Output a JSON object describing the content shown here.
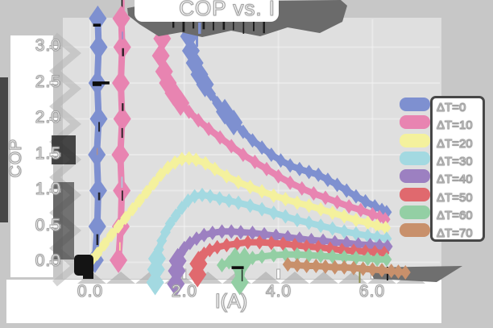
{
  "title": "COP vs. I",
  "axes": {
    "x_label": "I(A)",
    "y_label": "COP",
    "x_ticks": [
      "0.0",
      "2.0",
      "4.0",
      "6.0"
    ],
    "y_ticks": [
      "3.0",
      "2.5",
      "2.0",
      "1.5",
      "1.0",
      "0.5",
      "0.0"
    ]
  },
  "legend": {
    "items": [
      {
        "label": "ΔT=0",
        "color": "#7e90d0"
      },
      {
        "label": "ΔT=10",
        "color": "#e884b1"
      },
      {
        "label": "ΔT=20",
        "color": "#f4f19d"
      },
      {
        "label": "ΔT=30",
        "color": "#a3d9e1"
      },
      {
        "label": "ΔT=40",
        "color": "#9c80c1"
      },
      {
        "label": "ΔT=50",
        "color": "#e0696e"
      },
      {
        "label": "ΔT=60",
        "color": "#93cfa4"
      },
      {
        "label": "ΔT=70",
        "color": "#c8906b"
      }
    ]
  },
  "chart_data": {
    "type": "line",
    "title": "COP vs. I",
    "xlabel": "I(A)",
    "ylabel": "COP",
    "xlim": [
      0,
      6.8
    ],
    "ylim": [
      -0.3,
      3.4
    ],
    "x_tick_values": [
      0,
      2,
      4,
      6
    ],
    "y_tick_values": [
      0,
      0.5,
      1.0,
      1.5,
      2.0,
      2.5,
      3.0
    ],
    "grid": true,
    "legend_position": "right",
    "series": [
      {
        "name": "ΔT=0",
        "color": "#7e90d0",
        "segments": [
          [
            [
              0.1,
              0.03
            ],
            [
              0.15,
              0.5
            ],
            [
              0.17,
              1.0
            ],
            [
              0.14,
              1.5
            ],
            [
              0.18,
              2.0
            ],
            [
              0.15,
              2.5
            ],
            [
              0.18,
              3.0
            ],
            [
              0.16,
              3.4
            ]
          ],
          [
            [
              2.07,
              3.4
            ],
            [
              2.1,
              3.15
            ],
            [
              2.14,
              2.95
            ],
            [
              2.22,
              2.78
            ],
            [
              2.32,
              2.62
            ],
            [
              2.44,
              2.48
            ],
            [
              2.56,
              2.35
            ],
            [
              2.7,
              2.22
            ],
            [
              2.86,
              2.1
            ],
            [
              3.05,
              1.95
            ],
            [
              3.25,
              1.82
            ],
            [
              3.45,
              1.7
            ],
            [
              3.65,
              1.6
            ],
            [
              3.85,
              1.5
            ],
            [
              4.05,
              1.42
            ],
            [
              4.25,
              1.35
            ],
            [
              4.45,
              1.3
            ],
            [
              4.65,
              1.26
            ],
            [
              4.85,
              1.22
            ],
            [
              5.05,
              1.15
            ],
            [
              5.25,
              1.08
            ],
            [
              5.45,
              1.0
            ],
            [
              5.65,
              0.92
            ],
            [
              5.85,
              0.85
            ],
            [
              6.05,
              0.78
            ],
            [
              6.2,
              0.73
            ],
            [
              6.3,
              0.7
            ]
          ]
        ]
      },
      {
        "name": "ΔT=10",
        "color": "#e884b1",
        "segments": [
          [
            [
              0.6,
              0.03
            ],
            [
              0.65,
              0.5
            ],
            [
              0.67,
              1.0
            ],
            [
              0.64,
              1.5
            ],
            [
              0.68,
              2.0
            ],
            [
              0.65,
              2.5
            ],
            [
              0.68,
              3.0
            ],
            [
              0.66,
              3.4
            ]
          ],
          [
            [
              1.51,
              3.4
            ],
            [
              1.53,
              3.12
            ],
            [
              1.5,
              2.88
            ],
            [
              1.57,
              2.66
            ],
            [
              1.65,
              2.5
            ],
            [
              1.77,
              2.36
            ],
            [
              1.92,
              2.22
            ],
            [
              2.1,
              2.1
            ],
            [
              2.3,
              1.98
            ],
            [
              2.52,
              1.86
            ],
            [
              2.76,
              1.74
            ],
            [
              3.0,
              1.62
            ],
            [
              3.25,
              1.5
            ],
            [
              3.5,
              1.4
            ],
            [
              3.75,
              1.3
            ],
            [
              4.0,
              1.2
            ],
            [
              4.25,
              1.11
            ],
            [
              4.5,
              1.03
            ],
            [
              4.75,
              0.96
            ],
            [
              5.0,
              0.9
            ],
            [
              5.25,
              0.84
            ],
            [
              5.5,
              0.78
            ],
            [
              5.75,
              0.73
            ],
            [
              6.0,
              0.67
            ],
            [
              6.15,
              0.63
            ],
            [
              6.27,
              0.6
            ]
          ]
        ]
      },
      {
        "name": "ΔT=20",
        "color": "#f4f19d",
        "segments": [
          [
            [
              0.03,
              0.03
            ],
            [
              0.15,
              0.12
            ],
            [
              0.3,
              0.25
            ],
            [
              0.45,
              0.38
            ],
            [
              0.6,
              0.5
            ],
            [
              0.75,
              0.62
            ],
            [
              0.9,
              0.74
            ],
            [
              1.05,
              0.86
            ],
            [
              1.2,
              0.98
            ],
            [
              1.35,
              1.1
            ],
            [
              1.5,
              1.22
            ],
            [
              1.65,
              1.32
            ],
            [
              1.8,
              1.39
            ],
            [
              1.95,
              1.44
            ],
            [
              2.1,
              1.45
            ],
            [
              2.25,
              1.43
            ],
            [
              2.45,
              1.38
            ],
            [
              2.65,
              1.3
            ],
            [
              2.9,
              1.2
            ],
            [
              3.15,
              1.12
            ],
            [
              3.4,
              1.05
            ],
            [
              3.65,
              0.99
            ],
            [
              3.9,
              0.93
            ],
            [
              4.15,
              0.88
            ],
            [
              4.4,
              0.83
            ],
            [
              4.65,
              0.79
            ],
            [
              4.9,
              0.74
            ],
            [
              5.15,
              0.69
            ],
            [
              5.4,
              0.64
            ],
            [
              5.65,
              0.59
            ],
            [
              5.9,
              0.55
            ],
            [
              6.1,
              0.51
            ],
            [
              6.28,
              0.48
            ]
          ]
        ]
      },
      {
        "name": "ΔT=30",
        "color": "#a3d9e1",
        "segments": [
          [
            [
              1.38,
              -0.28
            ],
            [
              1.4,
              -0.1
            ],
            [
              1.42,
              0.05
            ],
            [
              1.46,
              0.18
            ],
            [
              1.52,
              0.3
            ],
            [
              1.6,
              0.42
            ],
            [
              1.7,
              0.54
            ],
            [
              1.82,
              0.65
            ],
            [
              1.95,
              0.76
            ],
            [
              2.08,
              0.86
            ],
            [
              2.22,
              0.92
            ],
            [
              2.38,
              0.94
            ],
            [
              2.55,
              0.92
            ],
            [
              2.75,
              0.89
            ],
            [
              2.95,
              0.86
            ],
            [
              3.15,
              0.83
            ],
            [
              3.4,
              0.79
            ],
            [
              3.65,
              0.74
            ],
            [
              3.9,
              0.69
            ],
            [
              4.15,
              0.64
            ],
            [
              4.4,
              0.59
            ],
            [
              4.65,
              0.55
            ],
            [
              4.9,
              0.51
            ],
            [
              5.15,
              0.47
            ],
            [
              5.4,
              0.43
            ],
            [
              5.65,
              0.4
            ],
            [
              5.9,
              0.37
            ],
            [
              6.1,
              0.35
            ],
            [
              6.3,
              0.33
            ]
          ]
        ]
      },
      {
        "name": "ΔT=40",
        "color": "#9c80c1",
        "segments": [
          [
            [
              1.82,
              -0.3
            ],
            [
              1.84,
              -0.12
            ],
            [
              1.86,
              0.02
            ],
            [
              1.92,
              0.12
            ],
            [
              2.0,
              0.2
            ],
            [
              2.12,
              0.27
            ],
            [
              2.26,
              0.33
            ],
            [
              2.42,
              0.38
            ],
            [
              2.6,
              0.41
            ],
            [
              2.8,
              0.43
            ],
            [
              3.0,
              0.43
            ],
            [
              3.2,
              0.42
            ],
            [
              3.45,
              0.41
            ],
            [
              3.7,
              0.39
            ],
            [
              3.95,
              0.37
            ],
            [
              4.2,
              0.35
            ],
            [
              4.45,
              0.33
            ],
            [
              4.7,
              0.31
            ],
            [
              4.95,
              0.3
            ],
            [
              5.2,
              0.28
            ],
            [
              5.45,
              0.27
            ],
            [
              5.7,
              0.25
            ],
            [
              5.95,
              0.24
            ],
            [
              6.15,
              0.23
            ],
            [
              6.32,
              0.22
            ]
          ]
        ]
      },
      {
        "name": "ΔT=50",
        "color": "#e0696e",
        "segments": [
          [
            [
              2.28,
              -0.17
            ],
            [
              2.3,
              -0.02
            ],
            [
              2.34,
              0.06
            ],
            [
              2.42,
              0.12
            ],
            [
              2.54,
              0.17
            ],
            [
              2.7,
              0.21
            ],
            [
              2.9,
              0.24
            ],
            [
              3.12,
              0.26
            ],
            [
              3.35,
              0.28
            ],
            [
              3.6,
              0.28
            ],
            [
              3.85,
              0.27
            ],
            [
              4.1,
              0.26
            ],
            [
              4.35,
              0.24
            ],
            [
              4.6,
              0.22
            ],
            [
              4.85,
              0.21
            ],
            [
              5.1,
              0.19
            ],
            [
              5.35,
              0.17
            ],
            [
              5.6,
              0.16
            ],
            [
              5.85,
              0.15
            ],
            [
              6.05,
              0.14
            ],
            [
              6.25,
              0.13
            ]
          ]
        ]
      },
      {
        "name": "ΔT=60",
        "color": "#93cfa4",
        "segments": [
          [
            [
              2.8,
              -0.04
            ],
            [
              2.95,
              0.0
            ],
            [
              3.08,
              0.03
            ],
            [
              3.18,
              -0.28
            ],
            [
              3.28,
              0.03
            ],
            [
              3.45,
              0.06
            ],
            [
              3.65,
              0.08
            ],
            [
              3.9,
              0.1
            ],
            [
              4.15,
              0.11
            ],
            [
              4.4,
              0.11
            ],
            [
              4.65,
              0.1
            ],
            [
              4.9,
              0.09
            ],
            [
              5.15,
              0.08
            ],
            [
              5.4,
              0.07
            ],
            [
              5.65,
              0.06
            ],
            [
              5.9,
              0.05
            ],
            [
              6.1,
              0.04
            ],
            [
              6.3,
              0.04
            ]
          ]
        ]
      },
      {
        "name": "ΔT=70",
        "color": "#c8906b",
        "segments": [
          [
            [
              4.2,
              -0.03
            ],
            [
              4.4,
              -0.04
            ],
            [
              4.6,
              -0.05
            ],
            [
              4.8,
              -0.05
            ],
            [
              5.0,
              -0.06
            ],
            [
              5.2,
              -0.07
            ],
            [
              5.4,
              -0.07
            ],
            [
              5.6,
              -0.08
            ],
            [
              5.8,
              -0.09
            ],
            [
              6.0,
              -0.1
            ],
            [
              6.2,
              -0.11
            ],
            [
              6.4,
              -0.12
            ],
            [
              6.55,
              -0.13
            ],
            [
              6.7,
              -0.14
            ]
          ]
        ]
      }
    ]
  }
}
